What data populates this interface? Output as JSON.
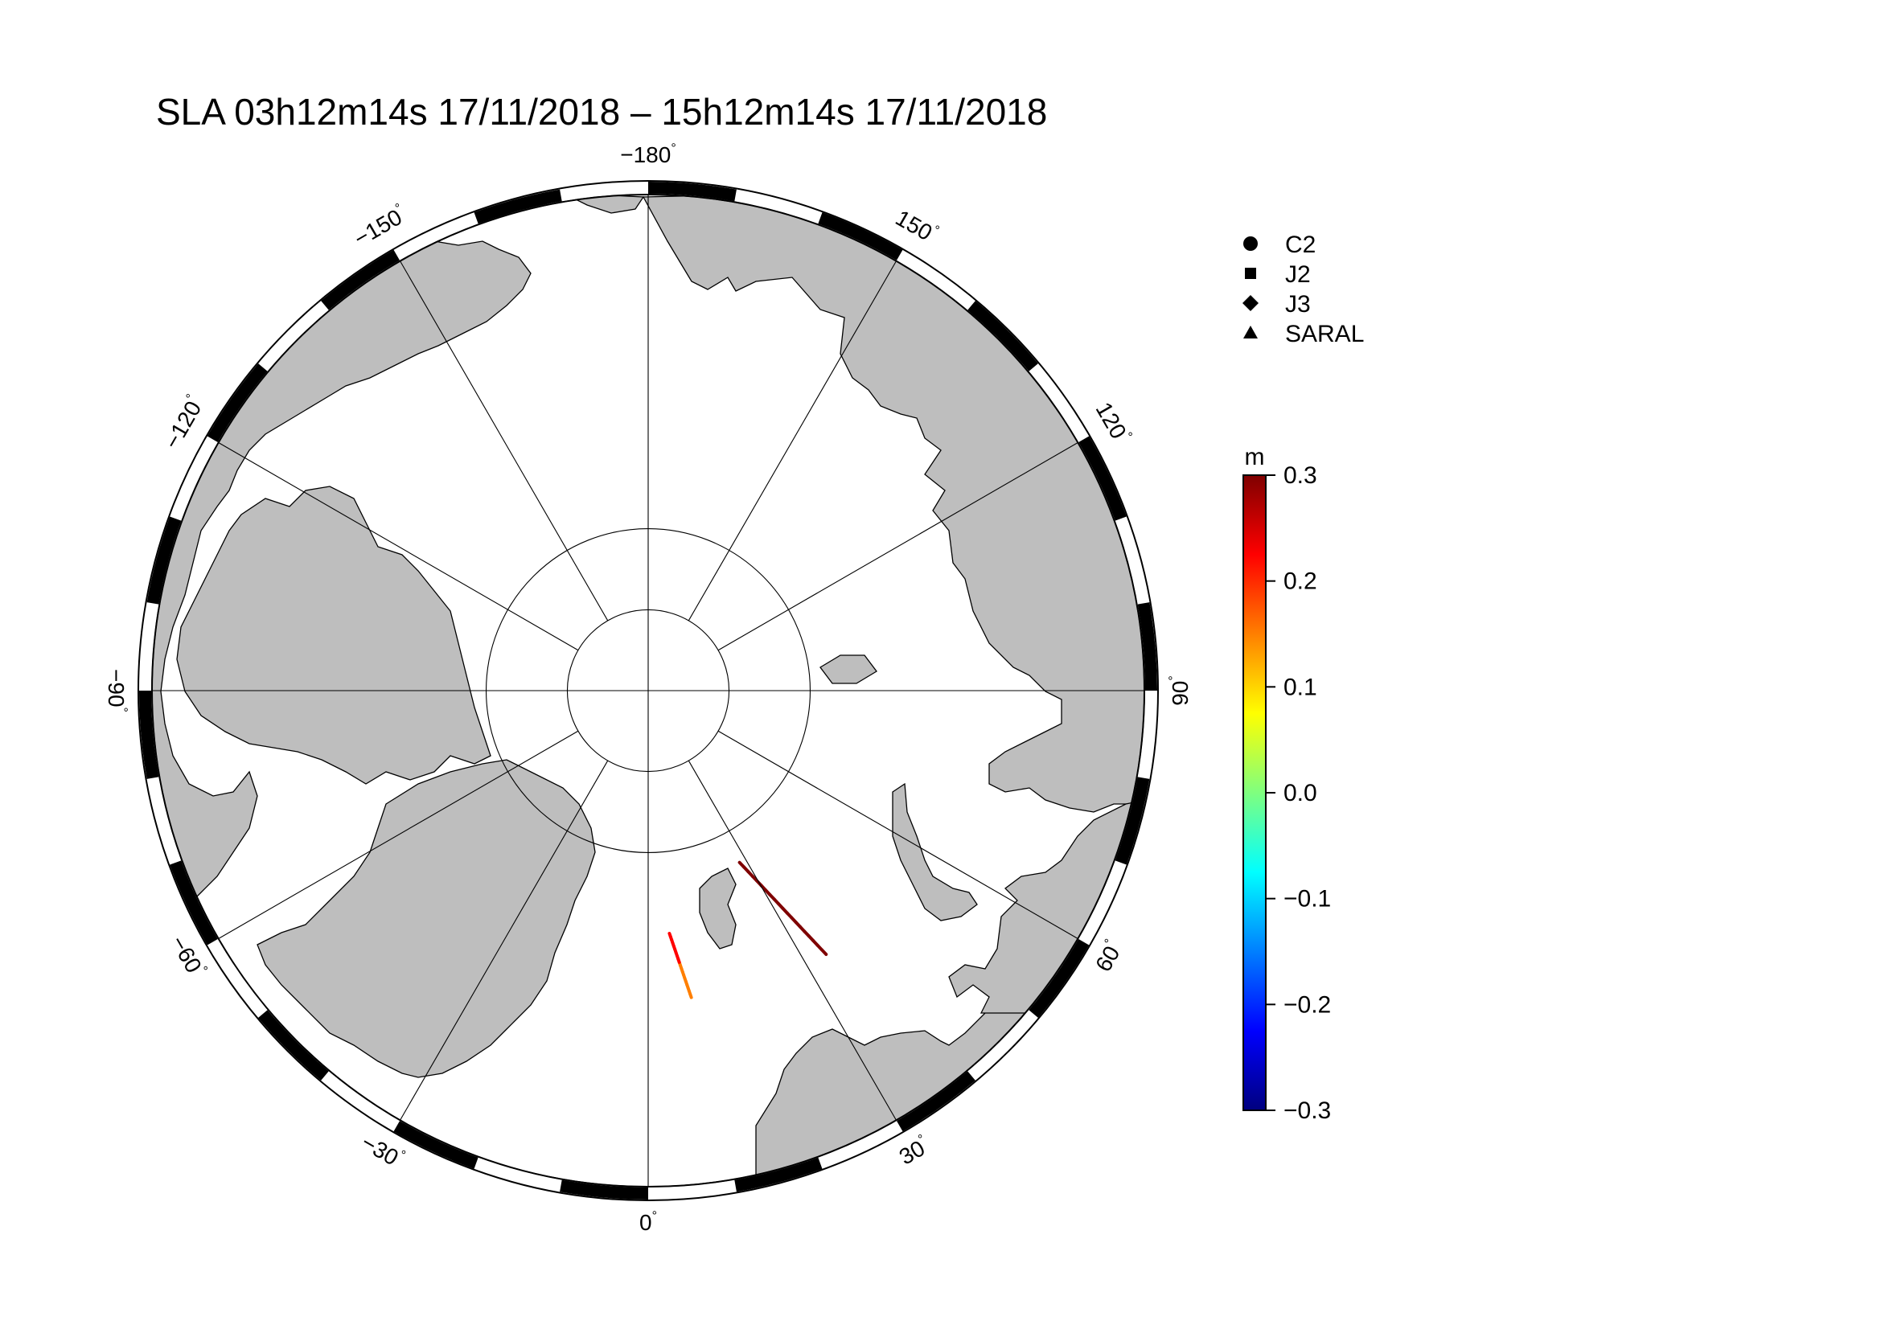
{
  "title": "SLA 03h12m14s 17/11/2018 – 15h12m14s 17/11/2018",
  "map": {
    "projection": "north-polar-stereographic",
    "degree_symbol": "°",
    "meridian_labels": [
      {
        "lon": -180,
        "text": "−180"
      },
      {
        "lon": -150,
        "text": "−150"
      },
      {
        "lon": -120,
        "text": "−120"
      },
      {
        "lon": -90,
        "text": "−90"
      },
      {
        "lon": -60,
        "text": "−60"
      },
      {
        "lon": -30,
        "text": "−30"
      },
      {
        "lon": 0,
        "text": "0"
      },
      {
        "lon": 30,
        "text": "30"
      },
      {
        "lon": 60,
        "text": "60"
      },
      {
        "lon": 90,
        "text": "90"
      },
      {
        "lon": 120,
        "text": "120"
      },
      {
        "lon": 150,
        "text": "150"
      }
    ],
    "latitude_circles": [
      80,
      85
    ],
    "land_color": "#bebebe",
    "ocean_color": "#ffffff",
    "tracks": [
      {
        "name": "track-1",
        "start": [
          71.0,
          8.0
        ],
        "end": [
          75.0,
          5.0
        ],
        "sla_start": 0.15,
        "sla_end": 0.22
      },
      {
        "name": "track-2",
        "start": [
          70.5,
          34.0
        ],
        "end": [
          78.0,
          28.0
        ],
        "sla_start": 0.28,
        "sla_end": 0.3
      }
    ]
  },
  "legend": {
    "items": [
      {
        "symbol": "circle",
        "label": "C2"
      },
      {
        "symbol": "square",
        "label": "J2"
      },
      {
        "symbol": "diamond",
        "label": "J3"
      },
      {
        "symbol": "triangle",
        "label": "SARAL"
      }
    ]
  },
  "colorbar": {
    "unit": "m",
    "min": -0.3,
    "max": 0.3,
    "ticks": [
      {
        "value": 0.3,
        "text": "0.3"
      },
      {
        "value": 0.2,
        "text": "0.2"
      },
      {
        "value": 0.1,
        "text": "0.1"
      },
      {
        "value": 0.0,
        "text": "0.0"
      },
      {
        "value": -0.1,
        "text": "−0.1"
      },
      {
        "value": -0.2,
        "text": "−0.2"
      },
      {
        "value": -0.3,
        "text": "−0.3"
      }
    ],
    "colormap": [
      "#00007f",
      "#0000ff",
      "#007fff",
      "#00ffff",
      "#7fff7f",
      "#ffff00",
      "#ff7f00",
      "#ff0000",
      "#7f0000"
    ]
  }
}
